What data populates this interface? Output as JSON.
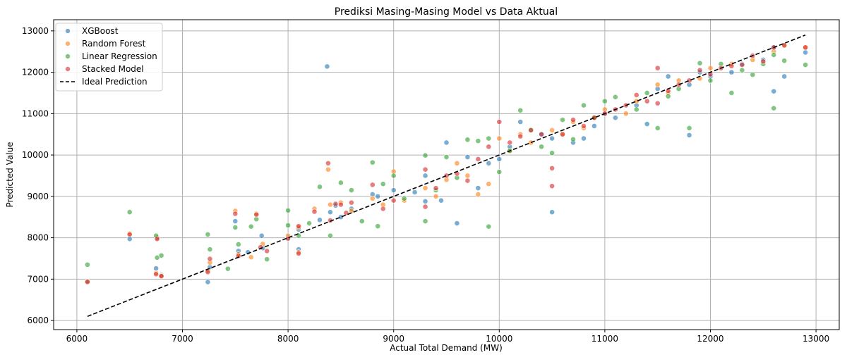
{
  "chart_data": {
    "type": "scatter",
    "title": "Prediksi Masing-Masing Model vs Data Aktual",
    "xlabel": "Actual Total Demand (MW)",
    "ylabel": "Predicted Value",
    "xlim": [
      5780,
      13220
    ],
    "ylim": [
      5780,
      13270
    ],
    "x_ticks": [
      6000,
      7000,
      8000,
      9000,
      10000,
      11000,
      12000,
      13000
    ],
    "y_ticks": [
      6000,
      7000,
      8000,
      9000,
      10000,
      11000,
      12000,
      13000
    ],
    "grid": true,
    "legend_position": "top-left",
    "series": [
      {
        "name": "XGBoost",
        "color": "#1f77b4",
        "points": [
          [
            6100,
            6950
          ],
          [
            6500,
            7970
          ],
          [
            6750,
            7260
          ],
          [
            6760,
            8000
          ],
          [
            6800,
            7100
          ],
          [
            7240,
            6930
          ],
          [
            7260,
            7290
          ],
          [
            7500,
            8400
          ],
          [
            7530,
            7680
          ],
          [
            7620,
            7650
          ],
          [
            7750,
            8050
          ],
          [
            7760,
            7750
          ],
          [
            8000,
            8000
          ],
          [
            8100,
            7720
          ],
          [
            8100,
            8200
          ],
          [
            8300,
            8430
          ],
          [
            8370,
            12140
          ],
          [
            8400,
            8620
          ],
          [
            8450,
            8780
          ],
          [
            8500,
            8500
          ],
          [
            8600,
            8700
          ],
          [
            8800,
            9050
          ],
          [
            8850,
            9000
          ],
          [
            9000,
            9150
          ],
          [
            9200,
            9100
          ],
          [
            9300,
            8880
          ],
          [
            9300,
            9500
          ],
          [
            9450,
            8900
          ],
          [
            9500,
            10300
          ],
          [
            9600,
            8350
          ],
          [
            9700,
            9950
          ],
          [
            9800,
            9200
          ],
          [
            9900,
            9800
          ],
          [
            10000,
            9900
          ],
          [
            10100,
            10200
          ],
          [
            10200,
            10800
          ],
          [
            10400,
            10500
          ],
          [
            10500,
            8620
          ],
          [
            10500,
            10400
          ],
          [
            10700,
            10300
          ],
          [
            10800,
            10400
          ],
          [
            10900,
            10700
          ],
          [
            11000,
            11000
          ],
          [
            11100,
            10900
          ],
          [
            11300,
            11200
          ],
          [
            11400,
            10750
          ],
          [
            11500,
            11600
          ],
          [
            11600,
            11900
          ],
          [
            11800,
            10480
          ],
          [
            11800,
            11700
          ],
          [
            11900,
            12000
          ],
          [
            12000,
            11900
          ],
          [
            12200,
            12000
          ],
          [
            12300,
            12200
          ],
          [
            12500,
            12300
          ],
          [
            12600,
            11540
          ],
          [
            12600,
            12600
          ],
          [
            12700,
            11900
          ],
          [
            12900,
            12480
          ]
        ]
      },
      {
        "name": "Random Forest",
        "color": "#ff7f0e",
        "points": [
          [
            6100,
            6950
          ],
          [
            6500,
            8100
          ],
          [
            6750,
            7150
          ],
          [
            6760,
            8000
          ],
          [
            6800,
            7080
          ],
          [
            7240,
            7200
          ],
          [
            7260,
            7400
          ],
          [
            7500,
            8650
          ],
          [
            7530,
            7600
          ],
          [
            7650,
            7530
          ],
          [
            7700,
            8580
          ],
          [
            7760,
            7850
          ],
          [
            8000,
            8050
          ],
          [
            8100,
            7650
          ],
          [
            8100,
            8250
          ],
          [
            8250,
            8700
          ],
          [
            8380,
            9650
          ],
          [
            8400,
            8800
          ],
          [
            8500,
            8850
          ],
          [
            8600,
            8650
          ],
          [
            8800,
            8950
          ],
          [
            8900,
            8800
          ],
          [
            9000,
            9600
          ],
          [
            9100,
            8900
          ],
          [
            9300,
            9200
          ],
          [
            9400,
            9000
          ],
          [
            9500,
            9400
          ],
          [
            9600,
            9800
          ],
          [
            9700,
            9500
          ],
          [
            9800,
            9050
          ],
          [
            9900,
            9300
          ],
          [
            10000,
            10400
          ],
          [
            10100,
            10100
          ],
          [
            10200,
            10500
          ],
          [
            10300,
            10300
          ],
          [
            10500,
            10600
          ],
          [
            10600,
            10500
          ],
          [
            10700,
            10800
          ],
          [
            10800,
            10650
          ],
          [
            10900,
            10900
          ],
          [
            11000,
            11100
          ],
          [
            11200,
            11000
          ],
          [
            11300,
            11300
          ],
          [
            11500,
            11700
          ],
          [
            11600,
            11500
          ],
          [
            11700,
            11800
          ],
          [
            11900,
            11850
          ],
          [
            12000,
            12100
          ],
          [
            12200,
            12200
          ],
          [
            12400,
            12300
          ],
          [
            12600,
            12500
          ],
          [
            12700,
            12650
          ],
          [
            12900,
            12600
          ]
        ]
      },
      {
        "name": "Linear Regression",
        "color": "#2ca02c",
        "points": [
          [
            6100,
            7350
          ],
          [
            6500,
            8620
          ],
          [
            6750,
            8050
          ],
          [
            6760,
            7520
          ],
          [
            6800,
            7570
          ],
          [
            7240,
            8080
          ],
          [
            7260,
            7720
          ],
          [
            7430,
            7250
          ],
          [
            7500,
            8250
          ],
          [
            7530,
            7840
          ],
          [
            7650,
            8270
          ],
          [
            7700,
            8450
          ],
          [
            7800,
            7480
          ],
          [
            8000,
            8660
          ],
          [
            8000,
            8300
          ],
          [
            8100,
            8050
          ],
          [
            8200,
            8350
          ],
          [
            8300,
            9230
          ],
          [
            8400,
            8050
          ],
          [
            8500,
            9330
          ],
          [
            8600,
            9150
          ],
          [
            8700,
            8400
          ],
          [
            8800,
            9820
          ],
          [
            8850,
            8280
          ],
          [
            8900,
            9300
          ],
          [
            9000,
            9500
          ],
          [
            9100,
            8950
          ],
          [
            9300,
            8400
          ],
          [
            9300,
            9990
          ],
          [
            9400,
            9150
          ],
          [
            9500,
            9950
          ],
          [
            9600,
            9450
          ],
          [
            9700,
            10370
          ],
          [
            9800,
            10340
          ],
          [
            9900,
            8270
          ],
          [
            9900,
            10400
          ],
          [
            10000,
            9590
          ],
          [
            10100,
            10100
          ],
          [
            10200,
            11080
          ],
          [
            10300,
            10600
          ],
          [
            10400,
            10200
          ],
          [
            10500,
            10050
          ],
          [
            10600,
            10850
          ],
          [
            10700,
            10380
          ],
          [
            10800,
            11200
          ],
          [
            10900,
            10900
          ],
          [
            11000,
            11300
          ],
          [
            11100,
            11400
          ],
          [
            11300,
            11100
          ],
          [
            11400,
            11500
          ],
          [
            11500,
            10650
          ],
          [
            11600,
            11420
          ],
          [
            11700,
            11600
          ],
          [
            11800,
            10650
          ],
          [
            11900,
            12220
          ],
          [
            12000,
            11800
          ],
          [
            12100,
            12200
          ],
          [
            12200,
            11500
          ],
          [
            12300,
            12050
          ],
          [
            12400,
            11940
          ],
          [
            12500,
            12200
          ],
          [
            12600,
            11130
          ],
          [
            12600,
            12420
          ],
          [
            12700,
            12280
          ],
          [
            12900,
            12180
          ]
        ]
      },
      {
        "name": "Stacked Model",
        "color": "#d62728",
        "points": [
          [
            6100,
            6930
          ],
          [
            6500,
            8080
          ],
          [
            6750,
            7120
          ],
          [
            6760,
            7970
          ],
          [
            6800,
            7070
          ],
          [
            7240,
            7170
          ],
          [
            7260,
            7490
          ],
          [
            7500,
            8580
          ],
          [
            7530,
            7560
          ],
          [
            7700,
            8560
          ],
          [
            7740,
            7770
          ],
          [
            7800,
            7680
          ],
          [
            8000,
            7980
          ],
          [
            8100,
            7620
          ],
          [
            8100,
            8280
          ],
          [
            8250,
            8630
          ],
          [
            8380,
            9800
          ],
          [
            8400,
            8420
          ],
          [
            8450,
            8820
          ],
          [
            8500,
            8800
          ],
          [
            8550,
            8600
          ],
          [
            8600,
            8850
          ],
          [
            8800,
            9280
          ],
          [
            8900,
            8700
          ],
          [
            9000,
            8900
          ],
          [
            9300,
            8750
          ],
          [
            9300,
            9650
          ],
          [
            9400,
            9200
          ],
          [
            9500,
            9500
          ],
          [
            9600,
            9550
          ],
          [
            9700,
            9380
          ],
          [
            9800,
            9900
          ],
          [
            9900,
            10200
          ],
          [
            10000,
            10800
          ],
          [
            10100,
            10300
          ],
          [
            10200,
            10450
          ],
          [
            10300,
            10600
          ],
          [
            10400,
            10500
          ],
          [
            10500,
            9250
          ],
          [
            10500,
            9680
          ],
          [
            10600,
            10500
          ],
          [
            10700,
            10850
          ],
          [
            10800,
            10700
          ],
          [
            10900,
            10900
          ],
          [
            11000,
            11000
          ],
          [
            11100,
            11100
          ],
          [
            11200,
            11200
          ],
          [
            11300,
            11450
          ],
          [
            11400,
            11300
          ],
          [
            11500,
            12100
          ],
          [
            11500,
            11250
          ],
          [
            11600,
            11550
          ],
          [
            11700,
            11700
          ],
          [
            11800,
            11800
          ],
          [
            11900,
            12050
          ],
          [
            12000,
            11950
          ],
          [
            12100,
            12100
          ],
          [
            12200,
            12150
          ],
          [
            12300,
            12180
          ],
          [
            12400,
            12400
          ],
          [
            12500,
            12260
          ],
          [
            12600,
            12600
          ],
          [
            12700,
            12650
          ],
          [
            12900,
            12600
          ]
        ]
      }
    ],
    "reference_line": {
      "name": "Ideal Prediction",
      "color": "#000000",
      "style": "dashed",
      "points": [
        [
          6100,
          6100
        ],
        [
          12900,
          12900
        ]
      ]
    }
  }
}
